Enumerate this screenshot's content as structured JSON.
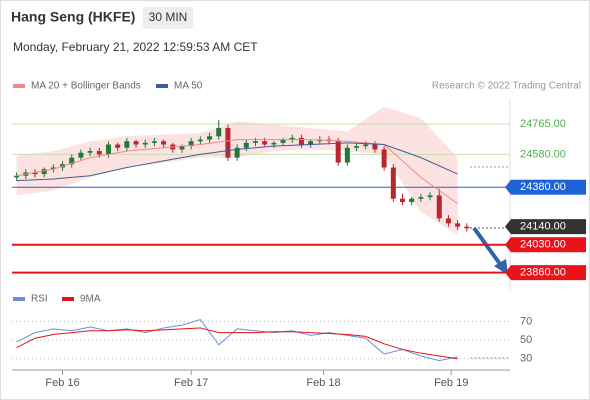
{
  "header": {
    "title": "Hang Seng (HKFE)",
    "interval": "30 MIN",
    "timestamp": "Monday, February 21, 2022 12:59:53 AM CET",
    "credit": "Research © 2022 Trading Central"
  },
  "chart_data": [
    {
      "type": "candlestick",
      "xlim": [
        -0.5,
        53.7
      ],
      "ylim": [
        23800,
        24920
      ],
      "up_color": "#1e7a3a",
      "down_color": "#b8262e",
      "candles": {
        "open": [
          24440,
          24450,
          24470,
          24460,
          24490,
          24500,
          24520,
          24560,
          24590,
          24600,
          24580,
          24640,
          24620,
          24660,
          24640,
          24650,
          24660,
          24640,
          24610,
          24630,
          24660,
          24670,
          24690,
          24740,
          24560,
          24620,
          24650,
          24660,
          24640,
          24650,
          24670,
          24680,
          24640,
          24660,
          24670,
          24660,
          24530,
          24620,
          24630,
          24640,
          24610,
          24500,
          24310,
          24290,
          24310,
          24320,
          24330,
          24190,
          24160,
          24140
        ],
        "high": [
          24470,
          24490,
          24490,
          24500,
          24520,
          24540,
          24580,
          24610,
          24620,
          24620,
          24660,
          24650,
          24680,
          24670,
          24670,
          24680,
          24670,
          24650,
          24640,
          24680,
          24690,
          24710,
          24790,
          24760,
          24640,
          24670,
          24680,
          24680,
          24660,
          24680,
          24700,
          24700,
          24670,
          24690,
          24690,
          24680,
          24640,
          24650,
          24660,
          24660,
          24630,
          24520,
          24340,
          24320,
          24340,
          24350,
          24370,
          24210,
          24180,
          24160
        ],
        "low": [
          24420,
          24430,
          24440,
          24440,
          24470,
          24480,
          24500,
          24540,
          24570,
          24560,
          24560,
          24600,
          24600,
          24620,
          24620,
          24630,
          24620,
          24590,
          24590,
          24610,
          24640,
          24650,
          24670,
          24540,
          24540,
          24600,
          24630,
          24630,
          24620,
          24630,
          24650,
          24620,
          24620,
          24640,
          24640,
          24510,
          24510,
          24600,
          24610,
          24590,
          24480,
          24290,
          24270,
          24270,
          24290,
          24300,
          24170,
          24140,
          24120,
          24110
        ],
        "close": [
          24450,
          24470,
          24460,
          24490,
          24500,
          24520,
          24560,
          24590,
          24600,
          24580,
          24640,
          24620,
          24660,
          24640,
          24650,
          24660,
          24640,
          24610,
          24630,
          24660,
          24670,
          24690,
          24740,
          24560,
          24620,
          24650,
          24660,
          24640,
          24650,
          24670,
          24680,
          24640,
          24660,
          24670,
          24660,
          24530,
          24620,
          24630,
          24640,
          24610,
          24500,
          24310,
          24290,
          24310,
          24320,
          24330,
          24190,
          24160,
          24140,
          24130
        ]
      },
      "bands": {
        "color": "#fde2e2",
        "x": [
          0,
          4,
          8,
          12,
          16,
          20,
          24,
          28,
          32,
          36,
          40,
          44,
          48
        ],
        "upper": [
          24570,
          24600,
          24660,
          24690,
          24700,
          24710,
          24780,
          24760,
          24740,
          24720,
          24870,
          24800,
          24560
        ],
        "lower": [
          24330,
          24360,
          24440,
          24500,
          24530,
          24560,
          24560,
          24600,
          24610,
          24600,
          24580,
          24230,
          24090
        ]
      },
      "series": [
        {
          "name": "MA 20 + Bollinger Bands",
          "color": "#f08a8a",
          "x": [
            0,
            4,
            8,
            12,
            16,
            20,
            24,
            28,
            32,
            36,
            40,
            44,
            48
          ],
          "values": [
            24450,
            24490,
            24560,
            24600,
            24620,
            24640,
            24670,
            24670,
            24670,
            24660,
            24640,
            24440,
            24280
          ]
        },
        {
          "name": "MA 50",
          "color": "#3e5f95",
          "x": [
            0,
            4,
            8,
            12,
            16,
            20,
            24,
            28,
            32,
            36,
            40,
            44,
            48
          ],
          "values": [
            24420,
            24430,
            24450,
            24500,
            24540,
            24580,
            24610,
            24630,
            24640,
            24650,
            24640,
            24560,
            24460
          ]
        }
      ],
      "levels": [
        {
          "value": 24765,
          "label": "24765.00",
          "color": "#7cb342",
          "style": "text"
        },
        {
          "value": 24580,
          "label": "24580.00",
          "color": "#7cb342",
          "style": "text"
        },
        {
          "value": 24380,
          "label": "24380.00",
          "color": "#1e63d6",
          "style": "box"
        },
        {
          "value": 24140,
          "label": "24140.00",
          "color": "#333333",
          "style": "box"
        },
        {
          "value": 24030,
          "label": "24030.00",
          "color": "#e8141a",
          "style": "box"
        },
        {
          "value": 23860,
          "label": "23860.00",
          "color": "#e8141a",
          "style": "box"
        }
      ]
    },
    {
      "type": "line",
      "xlim": [
        -0.5,
        53.7
      ],
      "ylim": [
        18,
        79
      ],
      "yticks": [
        70,
        50,
        30
      ],
      "xticks": [
        {
          "value": 5,
          "label": "Feb 16"
        },
        {
          "value": 19,
          "label": "Feb 17"
        },
        {
          "value": 33.4,
          "label": "Feb 18"
        },
        {
          "value": 47.3,
          "label": "Feb 19"
        }
      ],
      "series": [
        {
          "name": "RSI",
          "color": "#6a8fd8",
          "x": [
            0,
            2,
            4,
            6,
            8,
            10,
            12,
            14,
            16,
            18,
            20,
            22,
            24,
            26,
            28,
            30,
            32,
            34,
            36,
            38,
            40,
            42,
            44,
            46,
            48
          ],
          "values": [
            48,
            58,
            62,
            60,
            64,
            60,
            62,
            58,
            63,
            66,
            72,
            45,
            62,
            60,
            58,
            60,
            55,
            58,
            55,
            52,
            35,
            40,
            33,
            28,
            32
          ]
        },
        {
          "name": "9MA",
          "color": "#e0141a",
          "x": [
            0,
            2,
            4,
            6,
            8,
            10,
            12,
            14,
            16,
            18,
            20,
            22,
            24,
            26,
            28,
            30,
            32,
            34,
            36,
            38,
            40,
            42,
            44,
            46,
            48
          ],
          "values": [
            42,
            52,
            56,
            58,
            60,
            60,
            61,
            60,
            61,
            62,
            63,
            58,
            58,
            58,
            59,
            59,
            58,
            57,
            56,
            54,
            46,
            40,
            36,
            33,
            30
          ]
        }
      ]
    }
  ]
}
